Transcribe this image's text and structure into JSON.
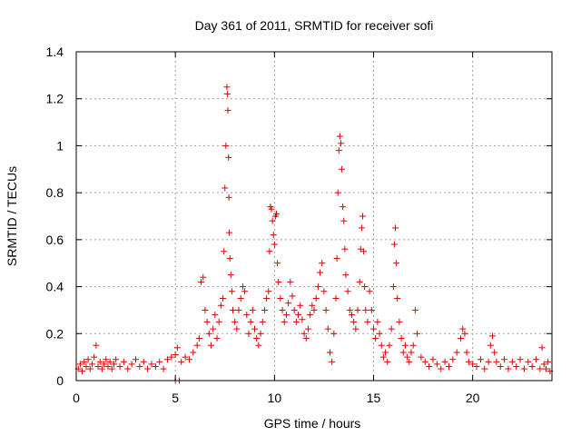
{
  "chart_data": {
    "type": "scatter",
    "title": "Day 361 of 2011, SRMTID for receiver sofi",
    "xlabel": "GPS time / hours",
    "ylabel": "SRMTID / TECUs",
    "xlim": [
      0,
      24
    ],
    "ylim": [
      0,
      1.4
    ],
    "xticks": [
      0,
      5,
      10,
      15,
      20
    ],
    "xtick_labels": [
      "0",
      "5",
      "10",
      "15",
      "20"
    ],
    "yticks": [
      0,
      0.2,
      0.4,
      0.6,
      0.8,
      1.0,
      1.2,
      1.4
    ],
    "ytick_labels": [
      "0",
      "0.2",
      "0.4",
      "0.6",
      "0.8",
      "1",
      "1.2",
      "1.4"
    ],
    "grid": true,
    "marker": "+",
    "color": "#e00000",
    "series": [
      {
        "name": "sofi",
        "points": [
          [
            0.1,
            0.05
          ],
          [
            0.2,
            0.07
          ],
          [
            0.3,
            0.04
          ],
          [
            0.4,
            0.08
          ],
          [
            0.5,
            0.06
          ],
          [
            0.6,
            0.09
          ],
          [
            0.7,
            0.05
          ],
          [
            0.8,
            0.07
          ],
          [
            0.9,
            0.1
          ],
          [
            1.0,
            0.15
          ],
          [
            1.1,
            0.06
          ],
          [
            1.2,
            0.08
          ],
          [
            1.3,
            0.05
          ],
          [
            1.4,
            0.07
          ],
          [
            1.5,
            0.09
          ],
          [
            1.6,
            0.06
          ],
          [
            1.7,
            0.08
          ],
          [
            1.8,
            0.05
          ],
          [
            1.9,
            0.07
          ],
          [
            2.0,
            0.09
          ],
          [
            2.2,
            0.06
          ],
          [
            2.4,
            0.08
          ],
          [
            2.6,
            0.05
          ],
          [
            2.8,
            0.07
          ],
          [
            3.0,
            0.09
          ],
          [
            3.2,
            0.06
          ],
          [
            3.4,
            0.08
          ],
          [
            3.6,
            0.05
          ],
          [
            3.8,
            0.07
          ],
          [
            4.0,
            0.06
          ],
          [
            4.2,
            0.08
          ],
          [
            4.4,
            0.05
          ],
          [
            4.6,
            0.09
          ],
          [
            4.8,
            0.1
          ],
          [
            5.0,
            0.11
          ],
          [
            5.0,
            0.0
          ],
          [
            5.2,
            0.0
          ],
          [
            5.1,
            0.14
          ],
          [
            5.3,
            0.08
          ],
          [
            5.5,
            0.1
          ],
          [
            5.7,
            0.09
          ],
          [
            5.9,
            0.12
          ],
          [
            6.1,
            0.15
          ],
          [
            6.2,
            0.18
          ],
          [
            6.3,
            0.42
          ],
          [
            6.4,
            0.44
          ],
          [
            6.5,
            0.3
          ],
          [
            6.6,
            0.25
          ],
          [
            6.7,
            0.2
          ],
          [
            6.8,
            0.15
          ],
          [
            6.9,
            0.22
          ],
          [
            7.0,
            0.28
          ],
          [
            7.1,
            0.18
          ],
          [
            7.2,
            0.25
          ],
          [
            7.3,
            0.32
          ],
          [
            7.4,
            0.35
          ],
          [
            7.45,
            0.55
          ],
          [
            7.5,
            0.82
          ],
          [
            7.55,
            1.0
          ],
          [
            7.6,
            1.25
          ],
          [
            7.62,
            1.22
          ],
          [
            7.65,
            1.15
          ],
          [
            7.68,
            0.95
          ],
          [
            7.7,
            0.78
          ],
          [
            7.72,
            0.63
          ],
          [
            7.75,
            0.52
          ],
          [
            7.8,
            0.45
          ],
          [
            7.85,
            0.38
          ],
          [
            7.9,
            0.3
          ],
          [
            8.0,
            0.25
          ],
          [
            8.1,
            0.22
          ],
          [
            8.2,
            0.3
          ],
          [
            8.3,
            0.35
          ],
          [
            8.4,
            0.4
          ],
          [
            8.5,
            0.38
          ],
          [
            8.6,
            0.28
          ],
          [
            8.7,
            0.2
          ],
          [
            8.8,
            0.25
          ],
          [
            8.9,
            0.3
          ],
          [
            9.0,
            0.22
          ],
          [
            9.1,
            0.18
          ],
          [
            9.2,
            0.15
          ],
          [
            9.3,
            0.2
          ],
          [
            9.4,
            0.25
          ],
          [
            9.5,
            0.3
          ],
          [
            9.6,
            0.35
          ],
          [
            9.7,
            0.38
          ],
          [
            9.75,
            0.55
          ],
          [
            9.8,
            0.74
          ],
          [
            9.85,
            0.73
          ],
          [
            9.9,
            0.68
          ],
          [
            9.95,
            0.62
          ],
          [
            10.0,
            0.58
          ],
          [
            10.05,
            0.7
          ],
          [
            10.1,
            0.71
          ],
          [
            10.15,
            0.5
          ],
          [
            10.2,
            0.42
          ],
          [
            10.3,
            0.35
          ],
          [
            10.4,
            0.3
          ],
          [
            10.5,
            0.25
          ],
          [
            10.6,
            0.28
          ],
          [
            10.7,
            0.33
          ],
          [
            10.8,
            0.42
          ],
          [
            10.9,
            0.36
          ],
          [
            11.0,
            0.3
          ],
          [
            11.1,
            0.25
          ],
          [
            11.2,
            0.28
          ],
          [
            11.3,
            0.32
          ],
          [
            11.4,
            0.26
          ],
          [
            11.5,
            0.2
          ],
          [
            11.6,
            0.18
          ],
          [
            11.7,
            0.22
          ],
          [
            11.8,
            0.28
          ],
          [
            11.9,
            0.32
          ],
          [
            12.0,
            0.3
          ],
          [
            12.1,
            0.35
          ],
          [
            12.2,
            0.4
          ],
          [
            12.3,
            0.46
          ],
          [
            12.4,
            0.5
          ],
          [
            12.5,
            0.38
          ],
          [
            12.6,
            0.3
          ],
          [
            12.7,
            0.22
          ],
          [
            12.8,
            0.12
          ],
          [
            12.9,
            0.08
          ],
          [
            13.0,
            0.2
          ],
          [
            13.1,
            0.35
          ],
          [
            13.15,
            0.52
          ],
          [
            13.2,
            0.8
          ],
          [
            13.25,
            0.98
          ],
          [
            13.3,
            1.04
          ],
          [
            13.35,
            1.01
          ],
          [
            13.4,
            0.9
          ],
          [
            13.45,
            0.74
          ],
          [
            13.5,
            0.68
          ],
          [
            13.55,
            0.56
          ],
          [
            13.6,
            0.45
          ],
          [
            13.7,
            0.38
          ],
          [
            13.8,
            0.3
          ],
          [
            13.9,
            0.28
          ],
          [
            14.0,
            0.25
          ],
          [
            14.1,
            0.22
          ],
          [
            14.2,
            0.3
          ],
          [
            14.3,
            0.42
          ],
          [
            14.35,
            0.56
          ],
          [
            14.4,
            0.65
          ],
          [
            14.45,
            0.7
          ],
          [
            14.5,
            0.55
          ],
          [
            14.55,
            0.4
          ],
          [
            14.6,
            0.3
          ],
          [
            14.7,
            0.25
          ],
          [
            14.8,
            0.38
          ],
          [
            14.9,
            0.3
          ],
          [
            15.0,
            0.22
          ],
          [
            15.1,
            0.18
          ],
          [
            15.2,
            0.25
          ],
          [
            15.3,
            0.2
          ],
          [
            15.4,
            0.15
          ],
          [
            15.5,
            0.1
          ],
          [
            15.6,
            0.12
          ],
          [
            15.7,
            0.08
          ],
          [
            15.8,
            0.15
          ],
          [
            15.9,
            0.22
          ],
          [
            16.0,
            0.4
          ],
          [
            16.05,
            0.58
          ],
          [
            16.1,
            0.65
          ],
          [
            16.15,
            0.5
          ],
          [
            16.2,
            0.35
          ],
          [
            16.3,
            0.25
          ],
          [
            16.4,
            0.18
          ],
          [
            16.5,
            0.12
          ],
          [
            16.6,
            0.15
          ],
          [
            16.7,
            0.1
          ],
          [
            16.8,
            0.08
          ],
          [
            16.9,
            0.12
          ],
          [
            17.0,
            0.15
          ],
          [
            17.1,
            0.3
          ],
          [
            17.2,
            0.2
          ],
          [
            17.4,
            0.1
          ],
          [
            17.6,
            0.08
          ],
          [
            17.8,
            0.06
          ],
          [
            18.0,
            0.09
          ],
          [
            18.2,
            0.07
          ],
          [
            18.4,
            0.05
          ],
          [
            18.6,
            0.08
          ],
          [
            18.8,
            0.06
          ],
          [
            19.0,
            0.09
          ],
          [
            19.2,
            0.12
          ],
          [
            19.4,
            0.18
          ],
          [
            19.5,
            0.22
          ],
          [
            19.6,
            0.2
          ],
          [
            19.7,
            0.12
          ],
          [
            19.8,
            0.08
          ],
          [
            20.0,
            0.07
          ],
          [
            20.2,
            0.06
          ],
          [
            20.4,
            0.09
          ],
          [
            20.6,
            0.05
          ],
          [
            20.8,
            0.08
          ],
          [
            20.9,
            0.15
          ],
          [
            21.0,
            0.19
          ],
          [
            21.1,
            0.12
          ],
          [
            21.2,
            0.08
          ],
          [
            21.4,
            0.06
          ],
          [
            21.6,
            0.09
          ],
          [
            21.8,
            0.05
          ],
          [
            22.0,
            0.08
          ],
          [
            22.2,
            0.06
          ],
          [
            22.4,
            0.09
          ],
          [
            22.6,
            0.05
          ],
          [
            22.8,
            0.08
          ],
          [
            23.0,
            0.06
          ],
          [
            23.2,
            0.09
          ],
          [
            23.4,
            0.05
          ],
          [
            23.5,
            0.14
          ],
          [
            23.6,
            0.07
          ],
          [
            23.7,
            0.05
          ],
          [
            23.8,
            0.08
          ],
          [
            23.9,
            0.04
          ]
        ]
      }
    ]
  }
}
